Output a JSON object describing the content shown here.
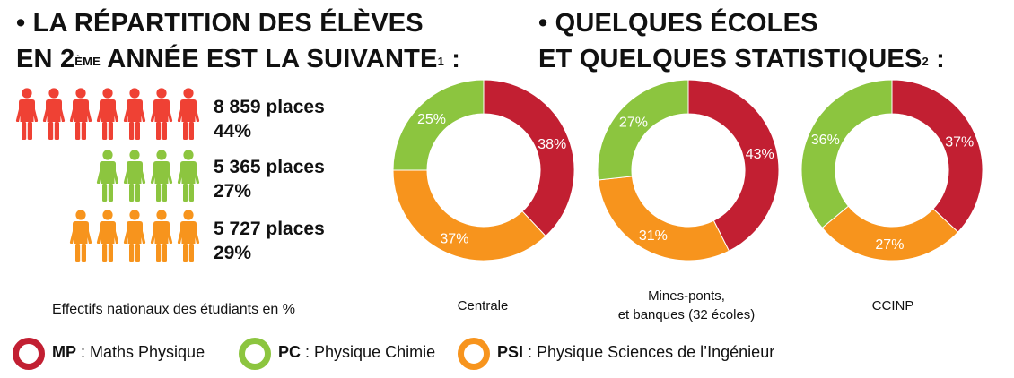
{
  "heading_left": {
    "line1": "• LA RÉPARTITION DES ÉLÈVES",
    "line2_a": "EN 2",
    "line2_sup": "ÈME",
    "line2_b": " ANNÉE EST LA SUIVANTE",
    "note": "1",
    "colon": " :"
  },
  "heading_right": {
    "line1": "• QUELQUES ÉCOLES",
    "line2": "ET QUELQUES STATISTIQUES",
    "note": "2",
    "colon": " :"
  },
  "pictogram": {
    "rows": [
      {
        "id": "MP",
        "color": "#ef4134",
        "people": 7,
        "places": "8 859 places",
        "percent": "44%"
      },
      {
        "id": "PC",
        "color": "#8cc53f",
        "people": 4,
        "places": "5 365 places",
        "percent": "27%"
      },
      {
        "id": "PSI",
        "color": "#f7941d",
        "people": 5,
        "places": "5 727 places",
        "percent": "29%"
      }
    ],
    "caption": "Effectifs nationaux des étudiants en %"
  },
  "chart_data": [
    {
      "type": "pie",
      "label": "Centrale",
      "categories": [
        "MP",
        "PSI",
        "PC"
      ],
      "values": [
        38,
        37,
        25
      ]
    },
    {
      "type": "pie",
      "label_line1": "Mines-ponts,",
      "label_line2": "et banques (32 écoles)",
      "categories": [
        "MP",
        "PSI",
        "PC"
      ],
      "values": [
        43,
        31,
        27
      ]
    },
    {
      "type": "pie",
      "label": "CCINP",
      "categories": [
        "MP",
        "PSI",
        "PC"
      ],
      "values": [
        37,
        27,
        36
      ]
    }
  ],
  "colors": {
    "MP": "#c21f32",
    "PC": "#8cc53f",
    "PSI": "#f7941d"
  },
  "legend": [
    {
      "key": "MP",
      "name": "Maths Physique",
      "color": "#c21f32"
    },
    {
      "key": "PC",
      "name": "Physique Chimie",
      "color": "#8cc53f"
    },
    {
      "key": "PSI",
      "name": "Physique Sciences de l’Ingénieur",
      "color": "#f7941d"
    }
  ]
}
